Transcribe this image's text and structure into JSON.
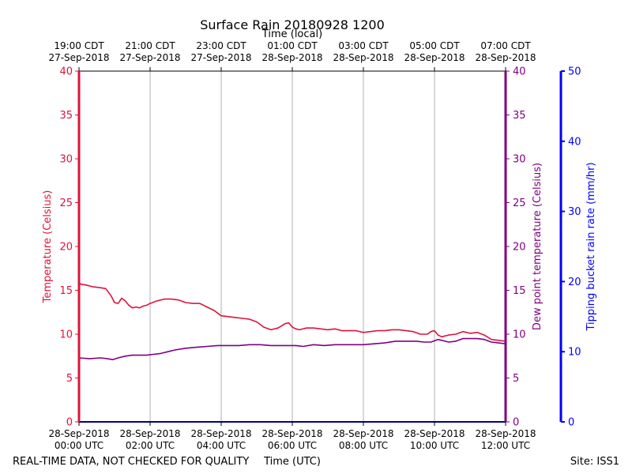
{
  "chart_data": {
    "type": "line",
    "title": "Surface Rain 20180928 1200",
    "top_axis_label": "Time (local)",
    "xlabel": "Time (UTC)",
    "ylabel_left": "Temperature (Celsius)",
    "ylabel_right": "Dew point temperature (Celsius)",
    "ylabel_far_right": "Tipping bucket rain rate (mm/hr)",
    "footer_left": "REAL-TIME DATA, NOT CHECKED FOR QUALITY",
    "footer_right": "Site: ISS1",
    "xlim": [
      0,
      12
    ],
    "ylim_temp": [
      0,
      40
    ],
    "ylim_dew": [
      0,
      40
    ],
    "ylim_rain": [
      0,
      50
    ],
    "temp_ticks": [
      "0",
      "5",
      "10",
      "15",
      "20",
      "25",
      "30",
      "35",
      "40"
    ],
    "rain_ticks": [
      "0",
      "10",
      "20",
      "30",
      "40",
      "50"
    ],
    "x_ticks_utc": [
      {
        "x": 0,
        "line1": "28-Sep-2018",
        "line2": "00:00 UTC"
      },
      {
        "x": 2,
        "line1": "28-Sep-2018",
        "line2": "02:00 UTC"
      },
      {
        "x": 4,
        "line1": "28-Sep-2018",
        "line2": "04:00 UTC"
      },
      {
        "x": 6,
        "line1": "28-Sep-2018",
        "line2": "06:00 UTC"
      },
      {
        "x": 8,
        "line1": "28-Sep-2018",
        "line2": "08:00 UTC"
      },
      {
        "x": 10,
        "line1": "28-Sep-2018",
        "line2": "10:00 UTC"
      },
      {
        "x": 12,
        "line1": "28-Sep-2018",
        "line2": "12:00 UTC"
      }
    ],
    "x_ticks_local": [
      {
        "x": 0,
        "line1": "19:00 CDT",
        "line2": "27-Sep-2018"
      },
      {
        "x": 2,
        "line1": "21:00 CDT",
        "line2": "27-Sep-2018"
      },
      {
        "x": 4,
        "line1": "23:00 CDT",
        "line2": "27-Sep-2018"
      },
      {
        "x": 6,
        "line1": "01:00 CDT",
        "line2": "28-Sep-2018"
      },
      {
        "x": 8,
        "line1": "03:00 CDT",
        "line2": "28-Sep-2018"
      },
      {
        "x": 10,
        "line1": "05:00 CDT",
        "line2": "28-Sep-2018"
      },
      {
        "x": 12,
        "line1": "07:00 CDT",
        "line2": "28-Sep-2018"
      }
    ],
    "colors": {
      "temperature": "#dc143c",
      "dewpoint": "#800080",
      "rain": "#0000ff",
      "grid": "#b0b0b0"
    },
    "series": [
      {
        "name": "Temperature",
        "axis": "left",
        "x": [
          0,
          0.05,
          0.2,
          0.4,
          0.6,
          0.75,
          0.9,
          1.0,
          1.1,
          1.2,
          1.3,
          1.4,
          1.5,
          1.6,
          1.7,
          1.8,
          1.9,
          2.0,
          2.2,
          2.4,
          2.6,
          2.8,
          3.0,
          3.2,
          3.4,
          3.6,
          3.8,
          4.0,
          4.2,
          4.4,
          4.6,
          4.8,
          5.0,
          5.2,
          5.4,
          5.6,
          5.8,
          5.9,
          6.0,
          6.1,
          6.2,
          6.4,
          6.6,
          6.8,
          7.0,
          7.2,
          7.4,
          7.6,
          7.8,
          8.0,
          8.2,
          8.4,
          8.6,
          8.8,
          9.0,
          9.2,
          9.4,
          9.6,
          9.8,
          9.9,
          10.0,
          10.1,
          10.2,
          10.4,
          10.6,
          10.8,
          11.0,
          11.2,
          11.4,
          11.6,
          11.8,
          12.0
        ],
        "values": [
          15.9,
          15.7,
          15.6,
          15.4,
          15.3,
          15.2,
          14.4,
          13.6,
          13.5,
          14.1,
          13.8,
          13.3,
          13.0,
          13.1,
          13.0,
          13.2,
          13.3,
          13.5,
          13.8,
          14.0,
          14.0,
          13.9,
          13.6,
          13.5,
          13.5,
          13.1,
          12.7,
          12.1,
          12.0,
          11.9,
          11.8,
          11.7,
          11.4,
          10.8,
          10.5,
          10.7,
          11.2,
          11.3,
          10.8,
          10.6,
          10.5,
          10.7,
          10.7,
          10.6,
          10.5,
          10.6,
          10.4,
          10.4,
          10.4,
          10.2,
          10.3,
          10.4,
          10.4,
          10.5,
          10.5,
          10.4,
          10.3,
          10.0,
          10.0,
          10.3,
          10.4,
          9.9,
          9.7,
          9.9,
          10.0,
          10.3,
          10.1,
          10.2,
          9.9,
          9.4,
          9.3,
          9.2
        ]
      },
      {
        "name": "Dew point temperature",
        "axis": "right",
        "x": [
          0,
          0.3,
          0.6,
          0.8,
          0.95,
          1.1,
          1.3,
          1.5,
          1.7,
          1.9,
          2.1,
          2.3,
          2.5,
          2.7,
          3.0,
          3.3,
          3.6,
          3.9,
          4.2,
          4.5,
          4.8,
          5.1,
          5.4,
          5.7,
          5.9,
          6.1,
          6.3,
          6.6,
          6.9,
          7.2,
          7.5,
          7.8,
          8.0,
          8.3,
          8.6,
          8.9,
          9.2,
          9.5,
          9.7,
          9.9,
          10.1,
          10.4,
          10.6,
          10.8,
          11.0,
          11.2,
          11.4,
          11.6,
          11.8,
          12.0
        ],
        "values": [
          7.3,
          7.2,
          7.3,
          7.2,
          7.1,
          7.3,
          7.5,
          7.6,
          7.6,
          7.6,
          7.7,
          7.8,
          8.0,
          8.2,
          8.4,
          8.5,
          8.6,
          8.7,
          8.7,
          8.7,
          8.8,
          8.8,
          8.7,
          8.7,
          8.7,
          8.7,
          8.6,
          8.8,
          8.7,
          8.8,
          8.8,
          8.8,
          8.8,
          8.9,
          9.0,
          9.2,
          9.2,
          9.2,
          9.1,
          9.1,
          9.4,
          9.1,
          9.2,
          9.5,
          9.5,
          9.5,
          9.4,
          9.1,
          9.0,
          8.9
        ]
      },
      {
        "name": "Tipping bucket rain rate",
        "axis": "far-right",
        "x": [
          0,
          12
        ],
        "values": [
          0,
          0
        ]
      }
    ]
  }
}
